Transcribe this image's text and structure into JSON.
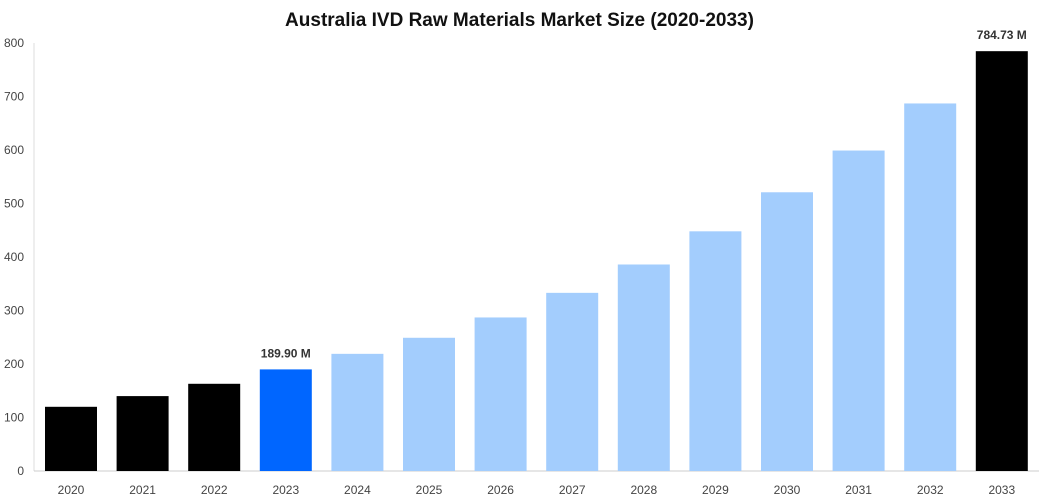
{
  "chart_data": {
    "type": "bar",
    "title": "Australia IVD Raw Materials Market Size (2020-2033)",
    "xlabel": "",
    "ylabel": "",
    "ylim": [
      0,
      800
    ],
    "yticks": [
      0,
      100,
      200,
      300,
      400,
      500,
      600,
      700,
      800
    ],
    "grid": false,
    "categories": [
      "2020",
      "2021",
      "2022",
      "2023",
      "2024",
      "2025",
      "2026",
      "2027",
      "2028",
      "2029",
      "2030",
      "2031",
      "2032",
      "2033"
    ],
    "values": [
      120,
      140,
      163,
      189.9,
      219,
      249,
      287,
      333,
      386,
      448,
      521,
      599,
      687,
      784.73
    ],
    "bar_colors": [
      "#000000",
      "#000000",
      "#000000",
      "#0066ff",
      "#a3cdfd",
      "#a3cdfd",
      "#a3cdfd",
      "#a3cdfd",
      "#a3cdfd",
      "#a3cdfd",
      "#a3cdfd",
      "#a3cdfd",
      "#a3cdfd",
      "#000000"
    ],
    "data_labels": {
      "3": "189.90 M",
      "13": "784.73 M"
    }
  }
}
